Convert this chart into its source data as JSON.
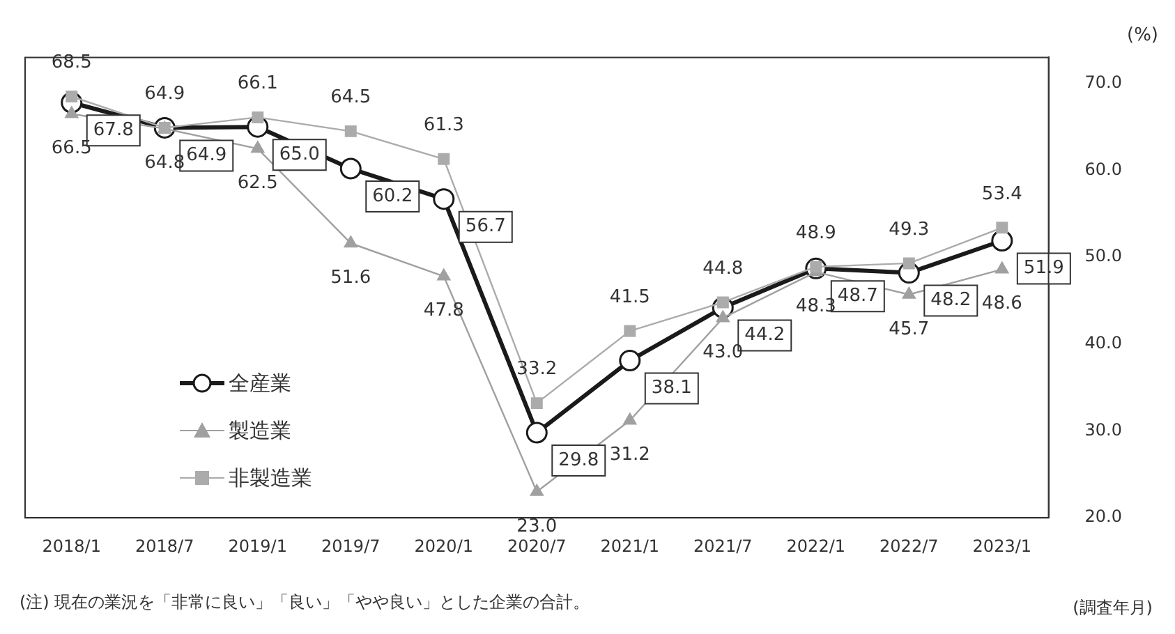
{
  "chart_data": {
    "type": "line",
    "xlabel": "(調査年月)",
    "ylabel": "(%)",
    "annotations": [
      "(注) 現在の業況を「非常に良い」「良い」「やや良い」とした企業の合計。"
    ],
    "categories": [
      "2018/1",
      "2018/7",
      "2019/1",
      "2019/7",
      "2020/1",
      "2020/7",
      "2021/1",
      "2021/7",
      "2022/1",
      "2022/7",
      "2023/1"
    ],
    "series": [
      {
        "name": "全産業",
        "color": "#1a1a1a",
        "marker": "circle",
        "values": [
          67.8,
          64.9,
          65.0,
          60.2,
          56.7,
          29.8,
          38.1,
          44.2,
          48.7,
          48.2,
          51.9
        ],
        "value_labels": [
          "67.8",
          "64.9",
          "65.0",
          "60.2",
          "56.7",
          "29.8",
          "38.1",
          "44.2",
          "48.7",
          "48.2",
          "51.9"
        ]
      },
      {
        "name": "製造業",
        "color": "#a0a0a0",
        "marker": "triangle",
        "values": [
          66.5,
          64.8,
          62.5,
          51.6,
          47.8,
          23.0,
          31.2,
          43.0,
          48.3,
          45.7,
          48.6
        ],
        "value_labels": [
          "66.5",
          "64.8",
          "62.5",
          "51.6",
          "47.8",
          "23.0",
          "31.2",
          "43.0",
          "48.3",
          "45.7",
          "48.6"
        ]
      },
      {
        "name": "非製造業",
        "color": "#ababab",
        "marker": "square",
        "values": [
          68.5,
          64.9,
          66.1,
          64.5,
          61.3,
          33.2,
          41.5,
          44.8,
          48.9,
          49.3,
          53.4
        ],
        "value_labels": [
          "68.5",
          "64.9",
          "66.1",
          "64.5",
          "61.3",
          "33.2",
          "41.5",
          "44.8",
          "48.9",
          "49.3",
          "53.4"
        ]
      }
    ],
    "ylim": [
      20,
      73
    ],
    "yticks": [
      {
        "value": 20,
        "label": "20.0"
      },
      {
        "value": 30,
        "label": "30.0"
      },
      {
        "value": 40,
        "label": "40.0"
      },
      {
        "value": 50,
        "label": "50.0"
      },
      {
        "value": 60,
        "label": "60.0"
      },
      {
        "value": 70,
        "label": "70.0"
      }
    ],
    "legend": "left",
    "grid": false,
    "line_style": "solid"
  }
}
